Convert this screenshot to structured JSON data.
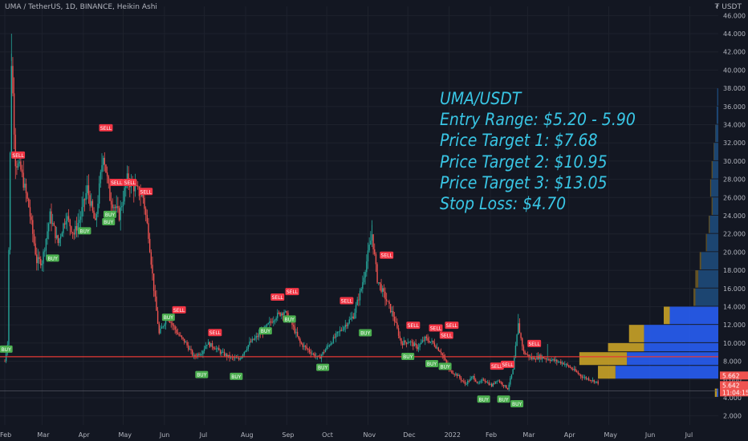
{
  "header": {
    "title": "UMA / TetherUS, 1D, BINANCE, Heikin Ashi",
    "currency": "₮ USDT"
  },
  "overlay": {
    "line1": "UMA/USDT",
    "line2": "Entry Range: $5.20 - 5.90",
    "line3": "Price Target 1: $7.68",
    "line4": "Price Target 2: $10.95",
    "line5": "Price Target 3: $13.05",
    "line6": "Stop Loss: $4.70"
  },
  "colors": {
    "bg": "#131722",
    "up": "#26a69a",
    "down": "#ef5350",
    "grid": "#1e222d",
    "text": "#b2b5be",
    "overlay": "#39c6e5",
    "buy": "#4caf50",
    "sell": "#f23645",
    "vp_blue": "#2962ff",
    "vp_gold": "#c9a227",
    "vp_blue_dim": "#1e4a7a",
    "vp_gold_dim": "#6e5a26",
    "hline": "#e53935"
  },
  "chart_data": {
    "type": "candlestick",
    "y_axis": {
      "min": 1,
      "max": 47,
      "ticks": [
        "46.000",
        "44.000",
        "42.000",
        "40.000",
        "38.000",
        "36.000",
        "34.000",
        "32.000",
        "30.000",
        "28.000",
        "26.000",
        "24.000",
        "22.000",
        "20.000",
        "18.000",
        "16.000",
        "14.000",
        "12.000",
        "10.000",
        "8.000",
        "6.000",
        "4.000",
        "2.000"
      ],
      "tick_values": [
        46,
        44,
        42,
        40,
        38,
        36,
        34,
        32,
        30,
        28,
        26,
        24,
        22,
        20,
        18,
        16,
        14,
        12,
        10,
        8,
        6,
        4,
        2
      ]
    },
    "x_axis": {
      "labels": [
        "Feb",
        "Mar",
        "Apr",
        "May",
        "Jun",
        "Jul",
        "Aug",
        "Sep",
        "Oct",
        "Nov",
        "Dec",
        "2022",
        "Feb",
        "Mar",
        "Apr",
        "May",
        "Jun",
        "Jul"
      ],
      "label_index": [
        0,
        28,
        59,
        89,
        120,
        150,
        181,
        212,
        242,
        273,
        303,
        334,
        365,
        393,
        424,
        454,
        485,
        515
      ],
      "total_days": 540
    },
    "price_path": [
      [
        0,
        8
      ],
      [
        2,
        10
      ],
      [
        5,
        41
      ],
      [
        8,
        30
      ],
      [
        12,
        29
      ],
      [
        18,
        25
      ],
      [
        24,
        19
      ],
      [
        28,
        19
      ],
      [
        34,
        24
      ],
      [
        40,
        21
      ],
      [
        46,
        24
      ],
      [
        52,
        22
      ],
      [
        57,
        24
      ],
      [
        62,
        27
      ],
      [
        68,
        23
      ],
      [
        74,
        31
      ],
      [
        79,
        26
      ],
      [
        86,
        24
      ],
      [
        92,
        28
      ],
      [
        98,
        27
      ],
      [
        104,
        26
      ],
      [
        108,
        22
      ],
      [
        112,
        16
      ],
      [
        116,
        11
      ],
      [
        122,
        13
      ],
      [
        130,
        11
      ],
      [
        136,
        10
      ],
      [
        142,
        8.5
      ],
      [
        148,
        9
      ],
      [
        152,
        10
      ],
      [
        158,
        9.5
      ],
      [
        162,
        9
      ],
      [
        168,
        8.5
      ],
      [
        176,
        8.2
      ],
      [
        184,
        10
      ],
      [
        192,
        11
      ],
      [
        198,
        12
      ],
      [
        204,
        13
      ],
      [
        210,
        13.5
      ],
      [
        216,
        12
      ],
      [
        222,
        10
      ],
      [
        230,
        9
      ],
      [
        236,
        8.3
      ],
      [
        242,
        9.5
      ],
      [
        250,
        11
      ],
      [
        256,
        12
      ],
      [
        262,
        13
      ],
      [
        268,
        16
      ],
      [
        272,
        19
      ],
      [
        276,
        22
      ],
      [
        280,
        17
      ],
      [
        286,
        15
      ],
      [
        292,
        13
      ],
      [
        298,
        10
      ],
      [
        304,
        10.2
      ],
      [
        310,
        9.5
      ],
      [
        316,
        10.5
      ],
      [
        322,
        10
      ],
      [
        328,
        9
      ],
      [
        334,
        7
      ],
      [
        340,
        6.5
      ],
      [
        346,
        5.5
      ],
      [
        352,
        6.3
      ],
      [
        356,
        5.5
      ],
      [
        360,
        6
      ],
      [
        366,
        5.3
      ],
      [
        370,
        6
      ],
      [
        374,
        5.5
      ],
      [
        378,
        5
      ],
      [
        382,
        7
      ],
      [
        386,
        12
      ],
      [
        390,
        9
      ],
      [
        396,
        8.3
      ],
      [
        402,
        8.5
      ],
      [
        410,
        8.2
      ],
      [
        420,
        7.8
      ],
      [
        428,
        7
      ],
      [
        434,
        6.3
      ],
      [
        440,
        6
      ],
      [
        446,
        5.64
      ]
    ],
    "signals": [
      {
        "label": "BUY",
        "day": 1,
        "price": 10,
        "dir": "up"
      },
      {
        "label": "SELL",
        "day": 10,
        "price": 30,
        "dir": "down"
      },
      {
        "label": "BUY",
        "day": 36,
        "price": 20,
        "dir": "up"
      },
      {
        "label": "BUY",
        "day": 60,
        "price": 23,
        "dir": "up"
      },
      {
        "label": "BUY",
        "day": 78,
        "price": 24,
        "dir": "up"
      },
      {
        "label": "SELL",
        "day": 76,
        "price": 33,
        "dir": "down"
      },
      {
        "label": "SELL",
        "day": 84,
        "price": 27,
        "dir": "down"
      },
      {
        "label": "BUY",
        "day": 79,
        "price": 24.8,
        "dir": "up"
      },
      {
        "label": "SELL",
        "day": 94,
        "price": 27,
        "dir": "down"
      },
      {
        "label": "SELL",
        "day": 106,
        "price": 26,
        "dir": "down"
      },
      {
        "label": "BUY",
        "day": 123,
        "price": 13.5,
        "dir": "up"
      },
      {
        "label": "SELL",
        "day": 131,
        "price": 13,
        "dir": "down"
      },
      {
        "label": "BUY",
        "day": 148,
        "price": 7.2,
        "dir": "up"
      },
      {
        "label": "SELL",
        "day": 158,
        "price": 10.5,
        "dir": "down"
      },
      {
        "label": "BUY",
        "day": 174,
        "price": 7,
        "dir": "up"
      },
      {
        "label": "BUY",
        "day": 196,
        "price": 12,
        "dir": "up"
      },
      {
        "label": "SELL",
        "day": 205,
        "price": 14.4,
        "dir": "down"
      },
      {
        "label": "SELL",
        "day": 216,
        "price": 15,
        "dir": "down"
      },
      {
        "label": "BUY",
        "day": 214,
        "price": 13.3,
        "dir": "up"
      },
      {
        "label": "BUY",
        "day": 239,
        "price": 8,
        "dir": "up"
      },
      {
        "label": "SELL",
        "day": 257,
        "price": 14,
        "dir": "down"
      },
      {
        "label": "BUY",
        "day": 271,
        "price": 11.8,
        "dir": "up"
      },
      {
        "label": "SELL",
        "day": 287,
        "price": 19,
        "dir": "down"
      },
      {
        "label": "SELL",
        "day": 307,
        "price": 11.3,
        "dir": "down"
      },
      {
        "label": "BUY",
        "day": 303,
        "price": 9.2,
        "dir": "up"
      },
      {
        "label": "SELL",
        "day": 324,
        "price": 11,
        "dir": "down"
      },
      {
        "label": "BUY",
        "day": 321,
        "price": 8.4,
        "dir": "up"
      },
      {
        "label": "SELL",
        "day": 332,
        "price": 10.2,
        "dir": "down"
      },
      {
        "label": "SELL",
        "day": 336,
        "price": 11.3,
        "dir": "down"
      },
      {
        "label": "BUY",
        "day": 331,
        "price": 8.1,
        "dir": "up"
      },
      {
        "label": "SELL",
        "day": 370,
        "price": 6.8,
        "dir": "down"
      },
      {
        "label": "SELL",
        "day": 378,
        "price": 7,
        "dir": "down"
      },
      {
        "label": "BUY",
        "day": 360,
        "price": 4.5,
        "dir": "up"
      },
      {
        "label": "BUY",
        "day": 375,
        "price": 4.5,
        "dir": "up"
      },
      {
        "label": "BUY",
        "day": 385,
        "price": 4,
        "dir": "up"
      },
      {
        "label": "SELL",
        "day": 398,
        "price": 9.3,
        "dir": "down"
      }
    ],
    "horizontal_line": {
      "price": 8.5
    },
    "last_price_labels": [
      "5.662",
      "5.642",
      "11:04:15"
    ],
    "volume_profile": [
      {
        "lo": 4,
        "hi": 5,
        "blue": 0.01,
        "gold": 0.04
      },
      {
        "lo": 5,
        "hi": 6,
        "blue": 0.0,
        "gold": 0.0
      },
      {
        "lo": 6,
        "hi": 7.5,
        "blue": 0.72,
        "gold": 0.35
      },
      {
        "lo": 7.5,
        "hi": 9,
        "blue": 0.64,
        "gold": 0.95
      },
      {
        "lo": 9,
        "hi": 10,
        "blue": 0.52,
        "gold": 0.72
      },
      {
        "lo": 10,
        "hi": 12,
        "blue": 0.52,
        "gold": 0.3
      },
      {
        "lo": 12,
        "hi": 14,
        "blue": 0.34,
        "gold": 0.12
      },
      {
        "lo": 14,
        "hi": 16,
        "blue": 0.16,
        "gold": 0.04
      },
      {
        "lo": 16,
        "hi": 18,
        "blue": 0.14,
        "gold": 0.06
      },
      {
        "lo": 18,
        "hi": 20,
        "blue": 0.12,
        "gold": 0.03
      },
      {
        "lo": 20,
        "hi": 22,
        "blue": 0.08,
        "gold": 0.02
      },
      {
        "lo": 22,
        "hi": 24,
        "blue": 0.06,
        "gold": 0.02
      },
      {
        "lo": 24,
        "hi": 26,
        "blue": 0.04,
        "gold": 0.02
      },
      {
        "lo": 26,
        "hi": 28,
        "blue": 0.05,
        "gold": 0.02
      },
      {
        "lo": 28,
        "hi": 30,
        "blue": 0.04,
        "gold": 0.02
      },
      {
        "lo": 30,
        "hi": 32,
        "blue": 0.03,
        "gold": 0.01
      },
      {
        "lo": 32,
        "hi": 34,
        "blue": 0.02,
        "gold": 0.005
      },
      {
        "lo": 34,
        "hi": 36,
        "blue": 0.012,
        "gold": 0.0
      },
      {
        "lo": 36,
        "hi": 38,
        "blue": 0.008,
        "gold": 0.0
      }
    ]
  }
}
